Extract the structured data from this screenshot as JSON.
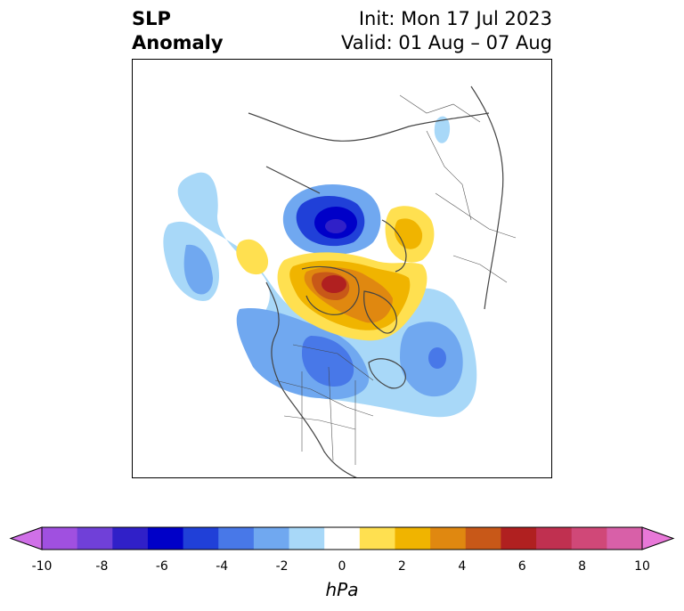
{
  "title": {
    "variable_line1": "SLP",
    "variable_line2": "Anomaly",
    "init": "Init: Mon 17 Jul 2023",
    "valid": "Valid: 01 Aug – 07 Aug"
  },
  "colorbar": {
    "units": "hPa",
    "ticks": [
      "-10",
      "-8",
      "-6",
      "-4",
      "-2",
      "0",
      "2",
      "4",
      "6",
      "8",
      "10"
    ],
    "colors": [
      "#a050e0",
      "#7040d8",
      "#3020c8",
      "#0000c8",
      "#2040d8",
      "#4878e8",
      "#70a8f0",
      "#a8d8f8",
      "#ffffff",
      "#ffe050",
      "#f0b400",
      "#e08810",
      "#c85818",
      "#b02020",
      "#c03050",
      "#d04878",
      "#d860a8"
    ],
    "extend_low_color": "#d070e8",
    "extend_high_color": "#e878d8"
  },
  "map": {
    "region": "North America / Arctic",
    "projection": "polar stereographic"
  }
}
